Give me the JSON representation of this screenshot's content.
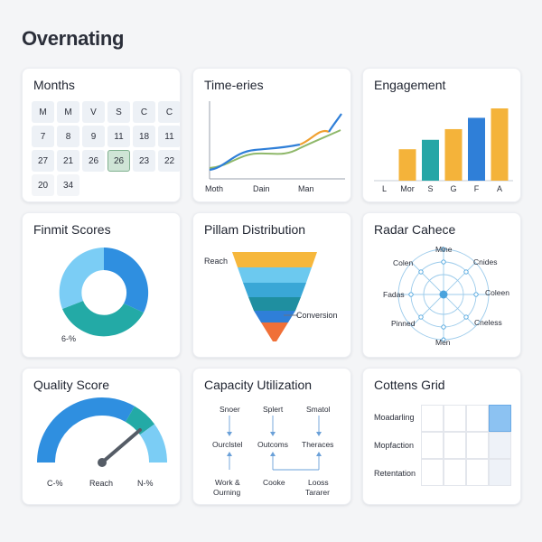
{
  "page": {
    "title": "Overnating"
  },
  "calendar": {
    "title": "Months",
    "rows": [
      [
        "M",
        "M",
        "V",
        "S",
        "C",
        "C"
      ],
      [
        "7",
        "8",
        "9",
        "11",
        "18",
        "11"
      ],
      [
        "27",
        "21",
        "26",
        "26",
        "23",
        "22"
      ],
      [
        "20",
        "34",
        "",
        "",
        "",
        ""
      ]
    ],
    "highlight": {
      "row": 2,
      "col": 3
    }
  },
  "timeseries": {
    "title": "Time-eries",
    "x_labels": [
      "Moth",
      "Dain",
      "Man"
    ],
    "colors": {
      "blue": "#2f7fd8",
      "orange": "#f0a030",
      "green": "#8fb86a"
    }
  },
  "engagement": {
    "title": "Engagement",
    "chart_data": {
      "type": "bar",
      "categories": [
        "L",
        "Mor",
        "S",
        "G",
        "F",
        "A"
      ],
      "values": [
        0,
        50,
        65,
        82,
        100,
        115
      ],
      "colors": [
        "#ffffff",
        "#f4b33a",
        "#26a6a6",
        "#f4b33a",
        "#2f7fd8",
        "#f4b33a"
      ]
    }
  },
  "donut": {
    "title": "Finmit Scores",
    "label": "6-%",
    "colors": [
      "#2f8fe0",
      "#23aaa6",
      "#7bcdf5"
    ]
  },
  "funnel": {
    "title": "Pillam Distribution",
    "top_label": "Reach",
    "bottom_label": "Conversion",
    "colors": [
      "#f6b73c",
      "#6cc9ef",
      "#3aa7d6",
      "#1f8fa0",
      "#2f7fd8",
      "#f07038"
    ]
  },
  "radar": {
    "title": "Radar Cahece",
    "labels": {
      "top": "Mine",
      "top_left": "Colen",
      "top_right": "Cnides",
      "left": "Fadas",
      "right": "Coleen",
      "bottom_left": "Pinned",
      "bottom_right": "Cneless",
      "bottom": "Men"
    },
    "color": "#4aa3dd"
  },
  "gauge": {
    "title": "Quality Score",
    "labels": [
      "C-%",
      "Reach",
      "N-%"
    ],
    "level": 0.8,
    "colors": {
      "main": "#2f8fe0",
      "teal": "#23aaa6",
      "light": "#7bcdf5"
    }
  },
  "capacity": {
    "title": "Capacity Utilization",
    "nodes": [
      "Snoer",
      "Splert",
      "Smatol",
      "Ourclstel",
      "Outcoms",
      "Theraces",
      "Work &",
      "Ourning",
      "Cooke",
      "Looss",
      "Tararer"
    ]
  },
  "grid": {
    "title": "Cottens Grid",
    "rows": [
      "Moadarling",
      "Mopfaction",
      "Retentation"
    ],
    "highlight_color": "#8cc2f2"
  }
}
